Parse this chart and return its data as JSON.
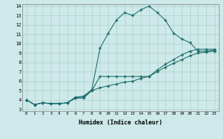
{
  "xlabel": "Humidex (Indice chaleur)",
  "ylabel": "",
  "background_color": "#cee9e9",
  "grid_color": "#b0d4cc",
  "line_color": "#1a6b6b",
  "xlim": [
    -0.5,
    23.5
  ],
  "ylim": [
    2.8,
    14.2
  ],
  "xticks": [
    0,
    1,
    2,
    3,
    4,
    5,
    6,
    7,
    8,
    9,
    10,
    11,
    12,
    13,
    14,
    15,
    16,
    17,
    18,
    19,
    20,
    21,
    22,
    23
  ],
  "yticks": [
    3,
    4,
    5,
    6,
    7,
    8,
    9,
    10,
    11,
    12,
    13,
    14
  ],
  "line1_x": [
    0,
    1,
    2,
    3,
    4,
    5,
    6,
    7,
    8,
    9,
    10,
    11,
    12,
    13,
    14,
    15,
    16,
    17,
    18,
    19,
    20,
    21,
    22,
    23
  ],
  "line1_y": [
    4.0,
    3.5,
    3.7,
    3.6,
    3.6,
    3.7,
    4.3,
    4.4,
    5.1,
    9.5,
    11.1,
    12.5,
    13.3,
    13.0,
    13.6,
    14.0,
    13.3,
    12.5,
    11.1,
    10.5,
    10.1,
    9.2,
    9.2,
    9.3
  ],
  "line2_x": [
    0,
    1,
    2,
    3,
    4,
    5,
    6,
    7,
    8,
    9,
    10,
    11,
    12,
    13,
    14,
    15,
    16,
    17,
    18,
    19,
    20,
    21,
    22,
    23
  ],
  "line2_y": [
    4.0,
    3.5,
    3.7,
    3.6,
    3.6,
    3.7,
    4.2,
    4.3,
    5.0,
    6.5,
    6.5,
    6.5,
    6.5,
    6.5,
    6.5,
    6.5,
    7.2,
    7.8,
    8.3,
    8.8,
    9.2,
    9.4,
    9.4,
    9.4
  ],
  "line3_x": [
    0,
    1,
    2,
    3,
    4,
    5,
    6,
    7,
    8,
    9,
    10,
    11,
    12,
    13,
    14,
    15,
    16,
    17,
    18,
    19,
    20,
    21,
    22,
    23
  ],
  "line3_y": [
    4.0,
    3.5,
    3.7,
    3.6,
    3.6,
    3.7,
    4.2,
    4.2,
    5.0,
    5.3,
    5.5,
    5.7,
    5.9,
    6.0,
    6.3,
    6.5,
    7.0,
    7.5,
    7.9,
    8.3,
    8.7,
    9.0,
    9.1,
    9.2
  ]
}
